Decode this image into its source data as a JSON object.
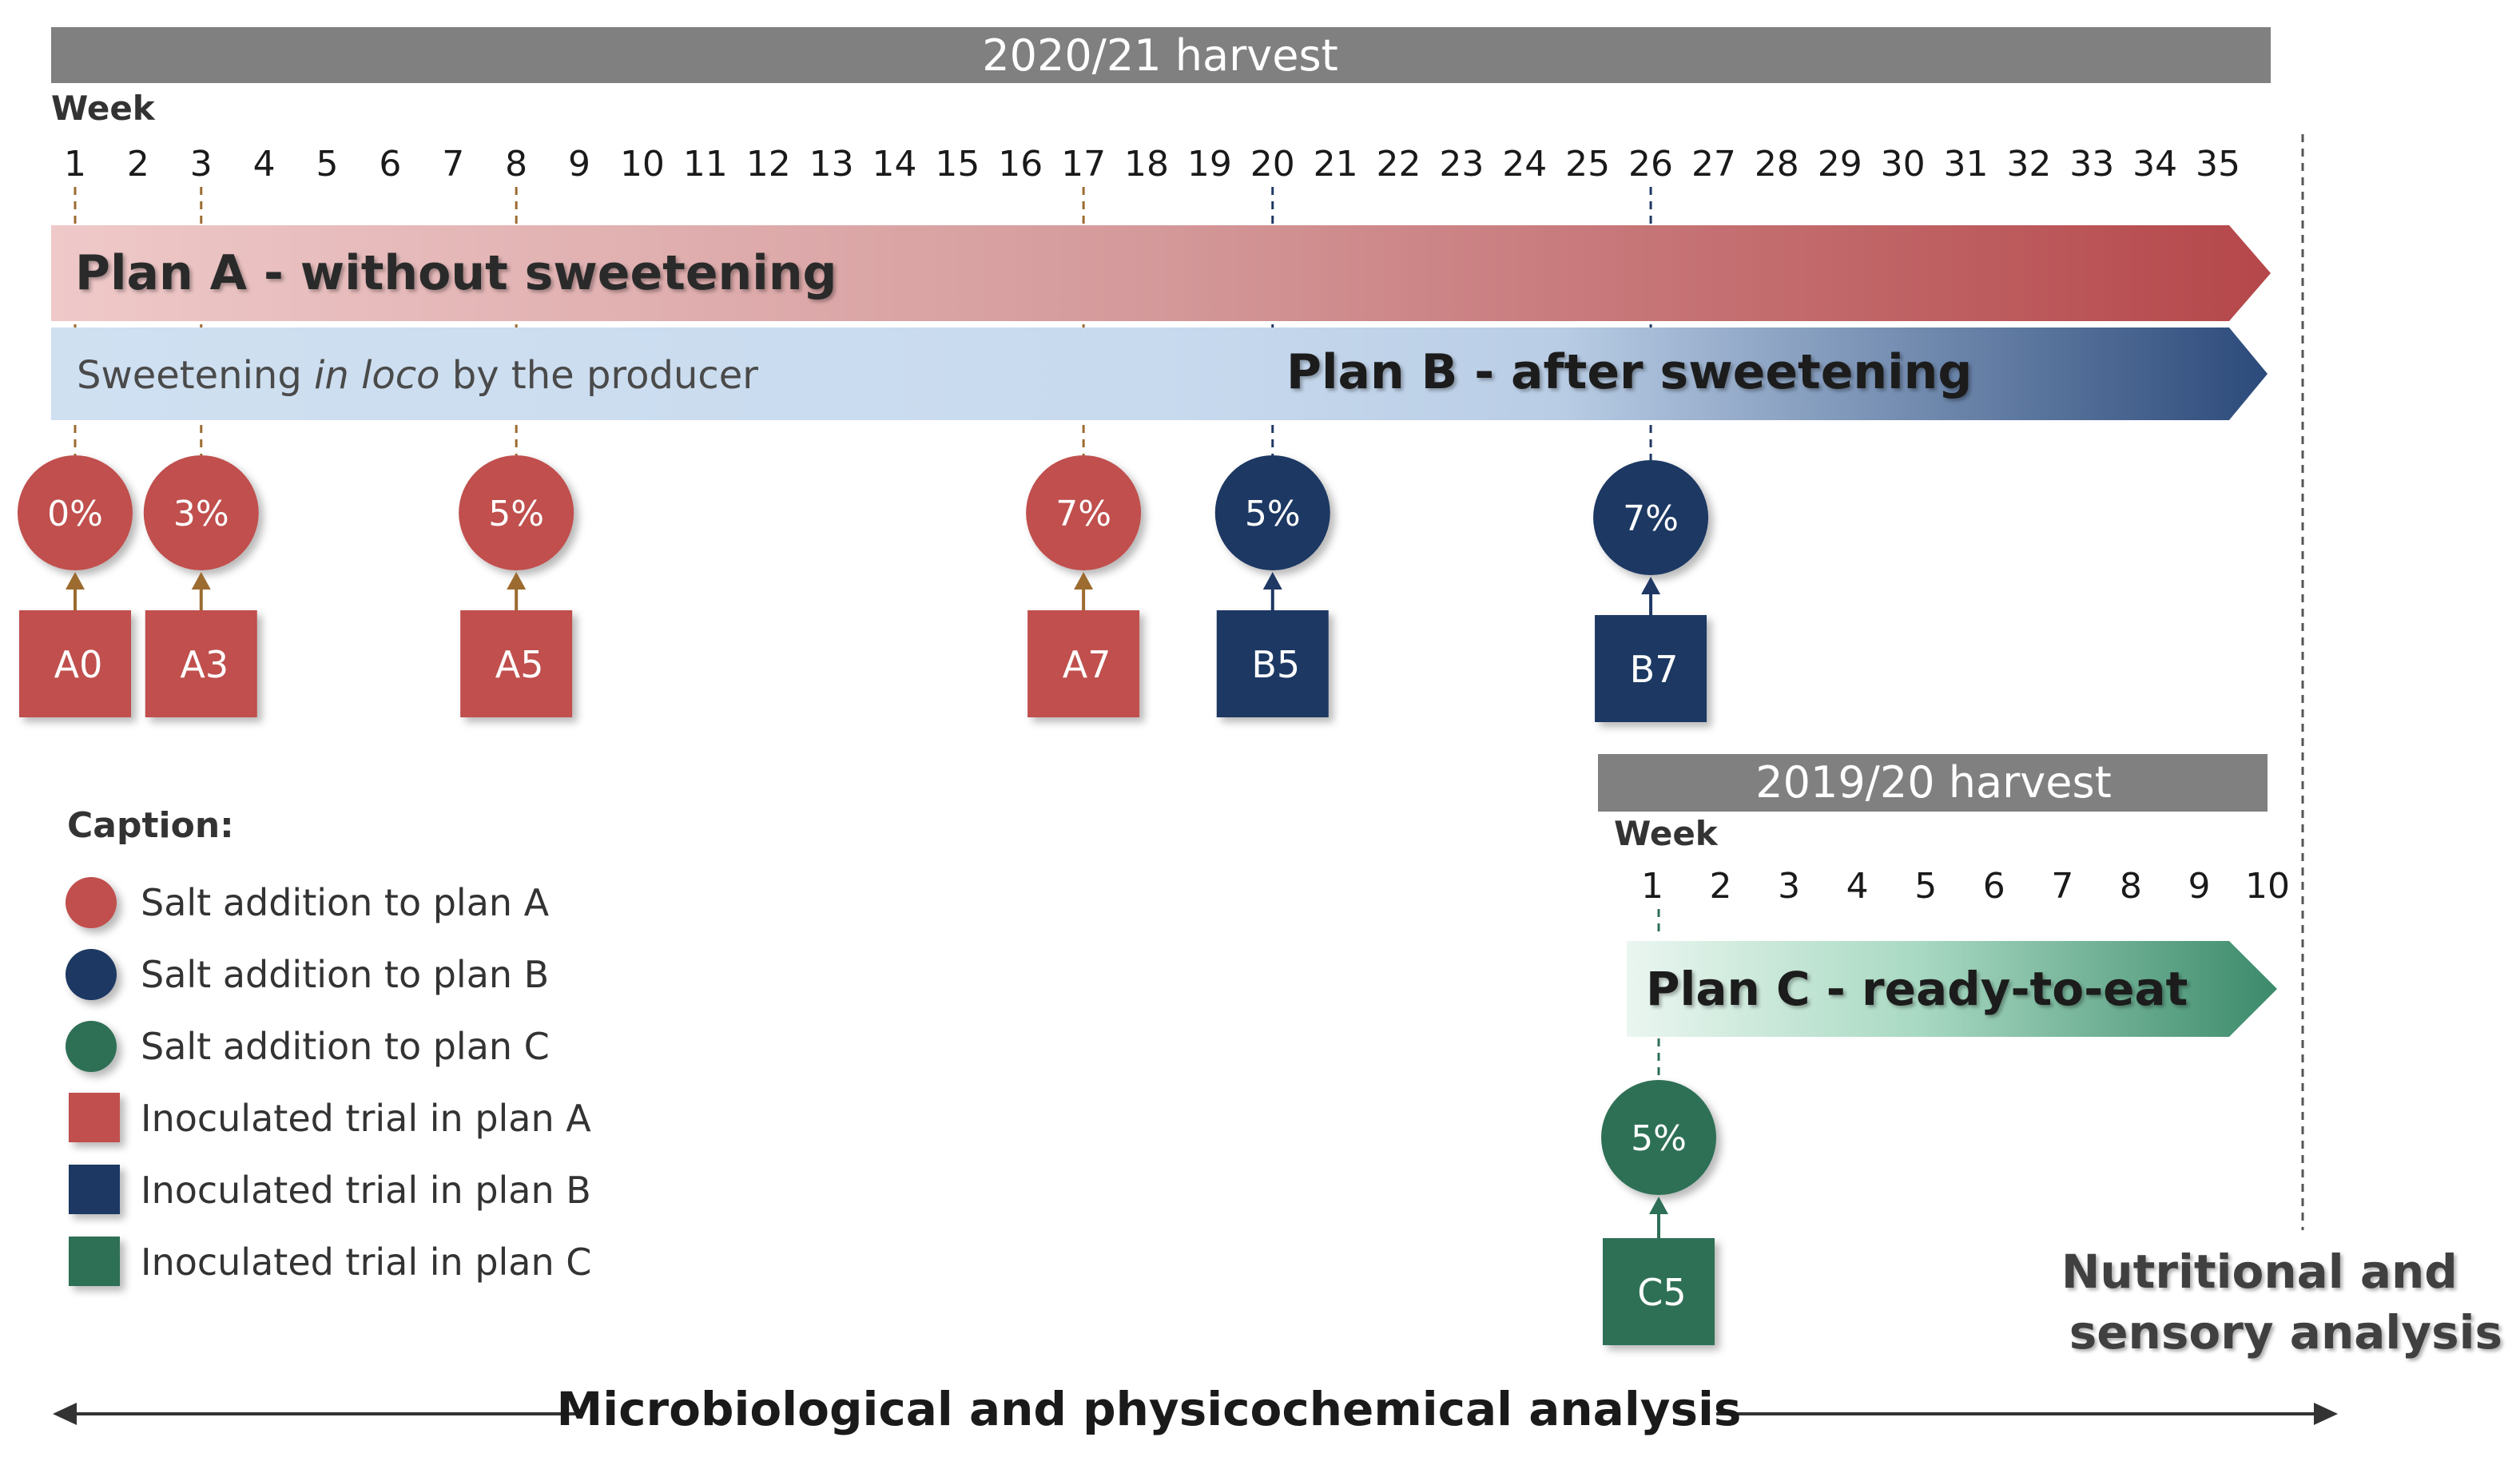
{
  "colors": {
    "plan_a": "#c0504d",
    "plan_b": "#1f3864",
    "plan_c": "#2e6f57",
    "header": "#7f7f7f",
    "week_text": "#1a1a1a",
    "marker_a": "#9c6b30"
  },
  "main_timeline": {
    "harvest_label": "2020/21 harvest",
    "week_label": "Week",
    "weeks": [
      "1",
      "2",
      "3",
      "4",
      "5",
      "6",
      "7",
      "8",
      "9",
      "10",
      "11",
      "12",
      "13",
      "14",
      "15",
      "16",
      "17",
      "18",
      "19",
      "20",
      "21",
      "22",
      "23",
      "24",
      "25",
      "26",
      "27",
      "28",
      "29",
      "30",
      "31",
      "32",
      "33",
      "34",
      "35"
    ]
  },
  "plan_a": {
    "label": "Plan A - without sweetening"
  },
  "plan_b": {
    "prefix": "Sweetening ",
    "italic": "in loco",
    "suffix": " by the producer",
    "label": "Plan B - after sweetening"
  },
  "events": [
    {
      "plan": "A",
      "week": 1,
      "salt": "0%",
      "trial": "A0"
    },
    {
      "plan": "A",
      "week": 3,
      "salt": "3%",
      "trial": "A3"
    },
    {
      "plan": "A",
      "week": 8,
      "salt": "5%",
      "trial": "A5"
    },
    {
      "plan": "A",
      "week": 17,
      "salt": "7%",
      "trial": "A7"
    },
    {
      "plan": "B",
      "week": 20,
      "salt": "5%",
      "trial": "B5"
    },
    {
      "plan": "B",
      "week": 26,
      "salt": "7%",
      "trial": "B7"
    }
  ],
  "second_timeline": {
    "harvest_label": "2019/20 harvest",
    "week_label": "Week",
    "weeks": [
      "1",
      "2",
      "3",
      "4",
      "5",
      "6",
      "7",
      "8",
      "9",
      "10"
    ]
  },
  "plan_c": {
    "label": "Plan C - ready-to-eat",
    "event": {
      "plan": "C",
      "week": 1,
      "salt": "5%",
      "trial": "C5"
    }
  },
  "caption": {
    "title": "Caption:",
    "items": [
      {
        "shape": "circle",
        "plan": "A",
        "label": "Salt addition to plan A"
      },
      {
        "shape": "circle",
        "plan": "B",
        "label": "Salt addition to plan B"
      },
      {
        "shape": "circle",
        "plan": "C",
        "label": "Salt addition to plan C"
      },
      {
        "shape": "square",
        "plan": "A",
        "label": "Inoculated trial in plan A"
      },
      {
        "shape": "square",
        "plan": "B",
        "label": "Inoculated trial in plan B"
      },
      {
        "shape": "square",
        "plan": "C",
        "label": "Inoculated trial in plan C"
      }
    ]
  },
  "nutritional": {
    "line1": "Nutritional and",
    "line2": "sensory analysis"
  },
  "bottom_label": "Microbiological and physicochemical analysis"
}
